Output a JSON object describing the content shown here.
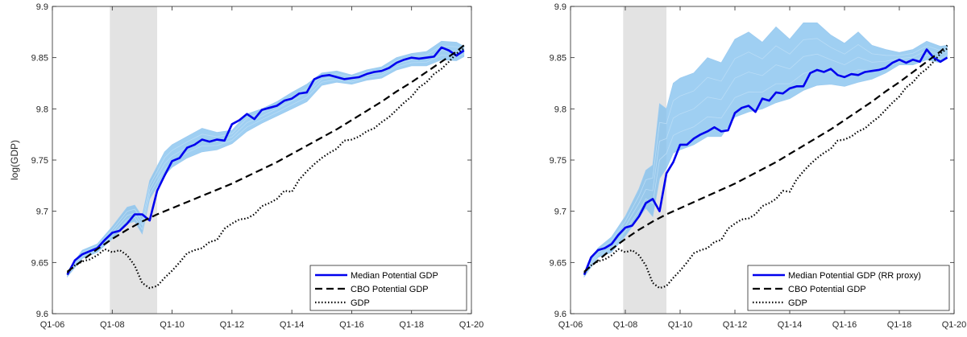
{
  "chart_data": [
    {
      "type": "line",
      "ylabel": "log(GDP)",
      "xlabel": "",
      "title": "",
      "xlim": [
        2006.0,
        2020.0
      ],
      "ylim": [
        9.6,
        9.9
      ],
      "xticks": [
        {
          "value": 2006.0,
          "label": "Q1-06"
        },
        {
          "value": 2008.0,
          "label": "Q1-08"
        },
        {
          "value": 2010.0,
          "label": "Q1-10"
        },
        {
          "value": 2012.0,
          "label": "Q1-12"
        },
        {
          "value": 2014.0,
          "label": "Q1-14"
        },
        {
          "value": 2016.0,
          "label": "Q1-16"
        },
        {
          "value": 2018.0,
          "label": "Q1-18"
        },
        {
          "value": 2020.0,
          "label": "Q1-20"
        }
      ],
      "yticks": [
        {
          "value": 9.6,
          "label": "9.6"
        },
        {
          "value": 9.65,
          "label": "9.65"
        },
        {
          "value": 9.7,
          "label": "9.7"
        },
        {
          "value": 9.75,
          "label": "9.75"
        },
        {
          "value": 9.8,
          "label": "9.8"
        },
        {
          "value": 9.85,
          "label": "9.85"
        },
        {
          "value": 9.9,
          "label": "9.9"
        }
      ],
      "recession": [
        2007.92,
        2009.5
      ],
      "legend_position": "bottom-right",
      "colors": {
        "median": "#0000ee",
        "band": "#7fbfee",
        "cbo": "#000000",
        "gdp": "#000000",
        "recession": "#e3e3e3"
      },
      "band": {
        "x": [
          2006.5,
          2007.0,
          2007.5,
          2008.0,
          2008.5,
          2008.75,
          2009.0,
          2009.25,
          2009.5,
          2009.75,
          2010.0,
          2010.5,
          2011.0,
          2011.5,
          2012.0,
          2012.5,
          2013.0,
          2013.5,
          2014.0,
          2014.5,
          2015.0,
          2015.5,
          2016.0,
          2016.5,
          2017.0,
          2017.5,
          2018.0,
          2018.5,
          2019.0,
          2019.5,
          2019.75
        ],
        "lower": [
          9.636,
          9.654,
          9.66,
          9.673,
          9.688,
          9.69,
          9.678,
          9.712,
          9.724,
          9.735,
          9.743,
          9.752,
          9.758,
          9.76,
          9.766,
          9.778,
          9.786,
          9.793,
          9.8,
          9.807,
          9.823,
          9.826,
          9.824,
          9.828,
          9.83,
          9.838,
          9.842,
          9.842,
          9.848,
          9.847,
          9.851
        ],
        "upper": [
          9.641,
          9.662,
          9.668,
          9.685,
          9.704,
          9.706,
          9.695,
          9.73,
          9.744,
          9.758,
          9.765,
          9.773,
          9.781,
          9.777,
          9.779,
          9.795,
          9.8,
          9.807,
          9.816,
          9.824,
          9.835,
          9.837,
          9.833,
          9.838,
          9.841,
          9.85,
          9.854,
          9.856,
          9.866,
          9.865,
          9.861
        ]
      },
      "series": [
        {
          "name": "Median Potential GDP",
          "style": "solid",
          "x": [
            2006.5,
            2006.75,
            2007.0,
            2007.25,
            2007.5,
            2007.75,
            2008.0,
            2008.25,
            2008.5,
            2008.75,
            2009.0,
            2009.25,
            2009.5,
            2009.75,
            2010.0,
            2010.25,
            2010.5,
            2010.75,
            2011.0,
            2011.25,
            2011.5,
            2011.75,
            2012.0,
            2012.25,
            2012.5,
            2012.75,
            2013.0,
            2013.25,
            2013.5,
            2013.75,
            2014.0,
            2014.25,
            2014.5,
            2014.75,
            2015.0,
            2015.25,
            2015.5,
            2015.75,
            2016.0,
            2016.25,
            2016.5,
            2016.75,
            2017.0,
            2017.25,
            2017.5,
            2017.75,
            2018.0,
            2018.25,
            2018.5,
            2018.75,
            2019.0,
            2019.25,
            2019.5,
            2019.75
          ],
          "y": [
            9.638,
            9.652,
            9.658,
            9.661,
            9.664,
            9.672,
            9.679,
            9.681,
            9.688,
            9.697,
            9.697,
            9.691,
            9.72,
            9.735,
            9.749,
            9.752,
            9.762,
            9.765,
            9.77,
            9.768,
            9.77,
            9.769,
            9.785,
            9.789,
            9.795,
            9.79,
            9.799,
            9.801,
            9.803,
            9.808,
            9.81,
            9.815,
            9.816,
            9.829,
            9.832,
            9.833,
            9.831,
            9.829,
            9.83,
            9.831,
            9.834,
            9.836,
            9.837,
            9.84,
            9.845,
            9.848,
            9.85,
            9.849,
            9.85,
            9.851,
            9.86,
            9.857,
            9.852,
            9.857
          ]
        },
        {
          "name": "CBO Potential GDP",
          "style": "dashed",
          "x": [
            2006.5,
            2007.0,
            2007.5,
            2008.0,
            2008.5,
            2009.0,
            2009.5,
            2010.0,
            2010.5,
            2011.0,
            2011.5,
            2012.0,
            2012.5,
            2013.0,
            2013.5,
            2014.0,
            2014.5,
            2015.0,
            2015.5,
            2016.0,
            2016.5,
            2017.0,
            2017.5,
            2018.0,
            2018.5,
            2019.0,
            2019.5,
            2019.75
          ],
          "y": [
            9.641,
            9.652,
            9.663,
            9.673,
            9.682,
            9.69,
            9.697,
            9.703,
            9.709,
            9.715,
            9.721,
            9.727,
            9.734,
            9.741,
            9.748,
            9.756,
            9.764,
            9.772,
            9.78,
            9.789,
            9.798,
            9.807,
            9.817,
            9.826,
            9.836,
            9.846,
            9.856,
            9.862
          ]
        },
        {
          "name": "GDP",
          "style": "dotted",
          "x": [
            2006.5,
            2006.75,
            2007.0,
            2007.25,
            2007.5,
            2007.75,
            2008.0,
            2008.25,
            2008.5,
            2008.75,
            2009.0,
            2009.25,
            2009.5,
            2009.75,
            2010.0,
            2010.25,
            2010.5,
            2010.75,
            2011.0,
            2011.25,
            2011.5,
            2011.75,
            2012.0,
            2012.25,
            2012.5,
            2012.75,
            2013.0,
            2013.25,
            2013.5,
            2013.75,
            2014.0,
            2014.25,
            2014.5,
            2014.75,
            2015.0,
            2015.25,
            2015.5,
            2015.75,
            2016.0,
            2016.25,
            2016.5,
            2016.75,
            2017.0,
            2017.25,
            2017.5,
            2017.75,
            2018.0,
            2018.25,
            2018.5,
            2018.75,
            2019.0,
            2019.25,
            2019.5,
            2019.75
          ],
          "y": [
            9.64,
            9.647,
            9.651,
            9.653,
            9.657,
            9.663,
            9.66,
            9.662,
            9.657,
            9.647,
            9.63,
            9.625,
            9.627,
            9.635,
            9.642,
            9.65,
            9.659,
            9.662,
            9.664,
            9.67,
            9.672,
            9.683,
            9.688,
            9.692,
            9.693,
            9.697,
            9.705,
            9.708,
            9.712,
            9.72,
            9.719,
            9.731,
            9.739,
            9.746,
            9.752,
            9.757,
            9.761,
            9.769,
            9.77,
            9.773,
            9.778,
            9.781,
            9.787,
            9.792,
            9.799,
            9.806,
            9.812,
            9.821,
            9.826,
            9.834,
            9.839,
            9.846,
            9.854,
            9.859
          ]
        }
      ]
    },
    {
      "type": "line",
      "ylabel": "",
      "xlabel": "",
      "title": "",
      "xlim": [
        2006.0,
        2020.0
      ],
      "ylim": [
        9.6,
        9.9
      ],
      "xticks": [
        {
          "value": 2006.0,
          "label": "Q1-06"
        },
        {
          "value": 2008.0,
          "label": "Q1-08"
        },
        {
          "value": 2010.0,
          "label": "Q1-10"
        },
        {
          "value": 2012.0,
          "label": "Q1-12"
        },
        {
          "value": 2014.0,
          "label": "Q1-14"
        },
        {
          "value": 2016.0,
          "label": "Q1-16"
        },
        {
          "value": 2018.0,
          "label": "Q1-18"
        },
        {
          "value": 2020.0,
          "label": "Q1-20"
        }
      ],
      "yticks": [
        {
          "value": 9.6,
          "label": "9.6"
        },
        {
          "value": 9.65,
          "label": "9.65"
        },
        {
          "value": 9.7,
          "label": "9.7"
        },
        {
          "value": 9.75,
          "label": "9.75"
        },
        {
          "value": 9.8,
          "label": "9.8"
        },
        {
          "value": 9.85,
          "label": "9.85"
        },
        {
          "value": 9.9,
          "label": "9.9"
        }
      ],
      "recession": [
        2007.92,
        2009.5
      ],
      "legend_position": "bottom-right",
      "colors": {
        "median": "#0000ee",
        "band": "#7fbfee",
        "cbo": "#000000",
        "gdp": "#000000",
        "recession": "#e3e3e3"
      },
      "band": {
        "x": [
          2006.5,
          2007.0,
          2007.5,
          2008.0,
          2008.5,
          2008.75,
          2009.0,
          2009.25,
          2009.5,
          2009.75,
          2010.0,
          2010.5,
          2011.0,
          2011.5,
          2012.0,
          2012.5,
          2013.0,
          2013.5,
          2014.0,
          2014.5,
          2015.0,
          2015.5,
          2016.0,
          2016.5,
          2017.0,
          2017.5,
          2018.0,
          2018.5,
          2019.0,
          2019.5,
          2019.75
        ],
        "lower": [
          9.636,
          9.655,
          9.66,
          9.676,
          9.694,
          9.703,
          9.695,
          9.732,
          9.742,
          9.757,
          9.76,
          9.765,
          9.773,
          9.773,
          9.792,
          9.797,
          9.8,
          9.806,
          9.81,
          9.818,
          9.823,
          9.824,
          9.822,
          9.826,
          9.829,
          9.835,
          9.843,
          9.843,
          9.848,
          9.845,
          9.85
        ],
        "upper": [
          9.641,
          9.664,
          9.675,
          9.695,
          9.722,
          9.74,
          9.745,
          9.805,
          9.8,
          9.825,
          9.83,
          9.835,
          9.85,
          9.845,
          9.868,
          9.875,
          9.865,
          9.88,
          9.868,
          9.884,
          9.884,
          9.872,
          9.864,
          9.875,
          9.862,
          9.858,
          9.855,
          9.858,
          9.866,
          9.861,
          9.862
        ]
      },
      "series": [
        {
          "name": "Median Potential GDP (RR proxy)",
          "style": "solid",
          "x": [
            2006.5,
            2006.75,
            2007.0,
            2007.25,
            2007.5,
            2007.75,
            2008.0,
            2008.25,
            2008.5,
            2008.75,
            2009.0,
            2009.25,
            2009.5,
            2009.75,
            2010.0,
            2010.25,
            2010.5,
            2010.75,
            2011.0,
            2011.25,
            2011.5,
            2011.75,
            2012.0,
            2012.25,
            2012.5,
            2012.75,
            2013.0,
            2013.25,
            2013.5,
            2013.75,
            2014.0,
            2014.25,
            2014.5,
            2014.75,
            2015.0,
            2015.25,
            2015.5,
            2015.75,
            2016.0,
            2016.25,
            2016.5,
            2016.75,
            2017.0,
            2017.25,
            2017.5,
            2017.75,
            2018.0,
            2018.25,
            2018.5,
            2018.75,
            2019.0,
            2019.25,
            2019.5,
            2019.75
          ],
          "y": [
            9.638,
            9.655,
            9.662,
            9.664,
            9.668,
            9.677,
            9.684,
            9.686,
            9.695,
            9.708,
            9.712,
            9.7,
            9.737,
            9.748,
            9.765,
            9.765,
            9.771,
            9.775,
            9.778,
            9.782,
            9.778,
            9.779,
            9.796,
            9.801,
            9.803,
            9.797,
            9.81,
            9.808,
            9.816,
            9.815,
            9.82,
            9.822,
            9.822,
            9.835,
            9.838,
            9.836,
            9.839,
            9.833,
            9.831,
            9.834,
            9.833,
            9.836,
            9.837,
            9.838,
            9.84,
            9.845,
            9.848,
            9.845,
            9.848,
            9.846,
            9.858,
            9.85,
            9.846,
            9.85
          ]
        },
        {
          "name": "CBO Potential GDP",
          "style": "dashed",
          "x": [
            2006.5,
            2007.0,
            2007.5,
            2008.0,
            2008.5,
            2009.0,
            2009.5,
            2010.0,
            2010.5,
            2011.0,
            2011.5,
            2012.0,
            2012.5,
            2013.0,
            2013.5,
            2014.0,
            2014.5,
            2015.0,
            2015.5,
            2016.0,
            2016.5,
            2017.0,
            2017.5,
            2018.0,
            2018.5,
            2019.0,
            2019.5,
            2019.75
          ],
          "y": [
            9.641,
            9.652,
            9.663,
            9.673,
            9.682,
            9.69,
            9.697,
            9.703,
            9.709,
            9.715,
            9.721,
            9.727,
            9.734,
            9.741,
            9.748,
            9.756,
            9.764,
            9.772,
            9.78,
            9.789,
            9.798,
            9.807,
            9.817,
            9.826,
            9.836,
            9.846,
            9.856,
            9.862
          ]
        },
        {
          "name": "GDP",
          "style": "dotted",
          "x": [
            2006.5,
            2006.75,
            2007.0,
            2007.25,
            2007.5,
            2007.75,
            2008.0,
            2008.25,
            2008.5,
            2008.75,
            2009.0,
            2009.25,
            2009.5,
            2009.75,
            2010.0,
            2010.25,
            2010.5,
            2010.75,
            2011.0,
            2011.25,
            2011.5,
            2011.75,
            2012.0,
            2012.25,
            2012.5,
            2012.75,
            2013.0,
            2013.25,
            2013.5,
            2013.75,
            2014.0,
            2014.25,
            2014.5,
            2014.75,
            2015.0,
            2015.25,
            2015.5,
            2015.75,
            2016.0,
            2016.25,
            2016.5,
            2016.75,
            2017.0,
            2017.25,
            2017.5,
            2017.75,
            2018.0,
            2018.25,
            2018.5,
            2018.75,
            2019.0,
            2019.25,
            2019.5,
            2019.75
          ],
          "y": [
            9.64,
            9.647,
            9.651,
            9.653,
            9.657,
            9.663,
            9.66,
            9.662,
            9.657,
            9.647,
            9.63,
            9.625,
            9.627,
            9.635,
            9.642,
            9.65,
            9.659,
            9.662,
            9.664,
            9.67,
            9.672,
            9.683,
            9.688,
            9.692,
            9.693,
            9.697,
            9.705,
            9.708,
            9.712,
            9.72,
            9.719,
            9.731,
            9.739,
            9.746,
            9.752,
            9.757,
            9.761,
            9.769,
            9.77,
            9.773,
            9.778,
            9.781,
            9.787,
            9.792,
            9.799,
            9.806,
            9.812,
            9.821,
            9.826,
            9.834,
            9.839,
            9.846,
            9.854,
            9.859
          ]
        }
      ]
    }
  ]
}
